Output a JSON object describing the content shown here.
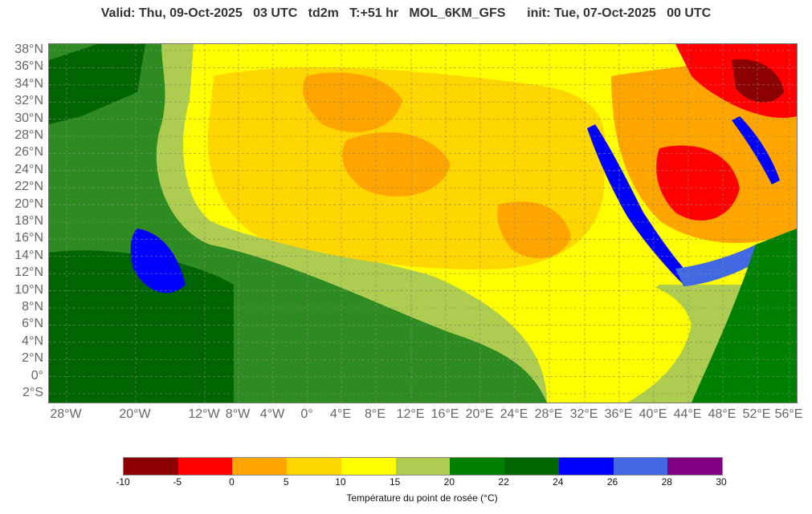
{
  "header": {
    "title": "Valid: Thu, 09-Oct-2025   03 UTC   td2m   T:+51 hr   MOL_6KM_GFS      init: Tue, 07-Oct-2025   00 UTC"
  },
  "map": {
    "region": "North Africa and Arabian Peninsula",
    "lon_range": [
      -30,
      56
    ],
    "lat_range": [
      -3,
      38.5
    ],
    "latitude_labels": [
      "38°N",
      "36°N",
      "34°N",
      "32°N",
      "30°N",
      "28°N",
      "26°N",
      "24°N",
      "22°N",
      "20°N",
      "18°N",
      "16°N",
      "14°N",
      "12°N",
      "10°N",
      "8°N",
      "6°N",
      "4°N",
      "2°N",
      "0°",
      "2°S"
    ],
    "longitude_labels": [
      "28°W",
      "20°W",
      "12°W",
      "8°W",
      "4°W",
      "0°",
      "4°E",
      "8°E",
      "12°E",
      "16°E",
      "20°E",
      "24°E",
      "28°E",
      "32°E",
      "36°E",
      "40°E",
      "44°E",
      "48°E",
      "52°E",
      "56°E"
    ]
  },
  "legend": {
    "title": "Température du point de rosée (°C)",
    "ticks": [
      "-10",
      "-5",
      "0",
      "5",
      "10",
      "15",
      "20",
      "22",
      "24",
      "26",
      "28",
      "30"
    ],
    "colors": [
      "#8b0000",
      "#ff0000",
      "#ffa500",
      "#ffd700",
      "#ffff00",
      "#adcc50",
      "#008000",
      "#006400",
      "#0000ff",
      "#4169e1",
      "#800080"
    ]
  }
}
